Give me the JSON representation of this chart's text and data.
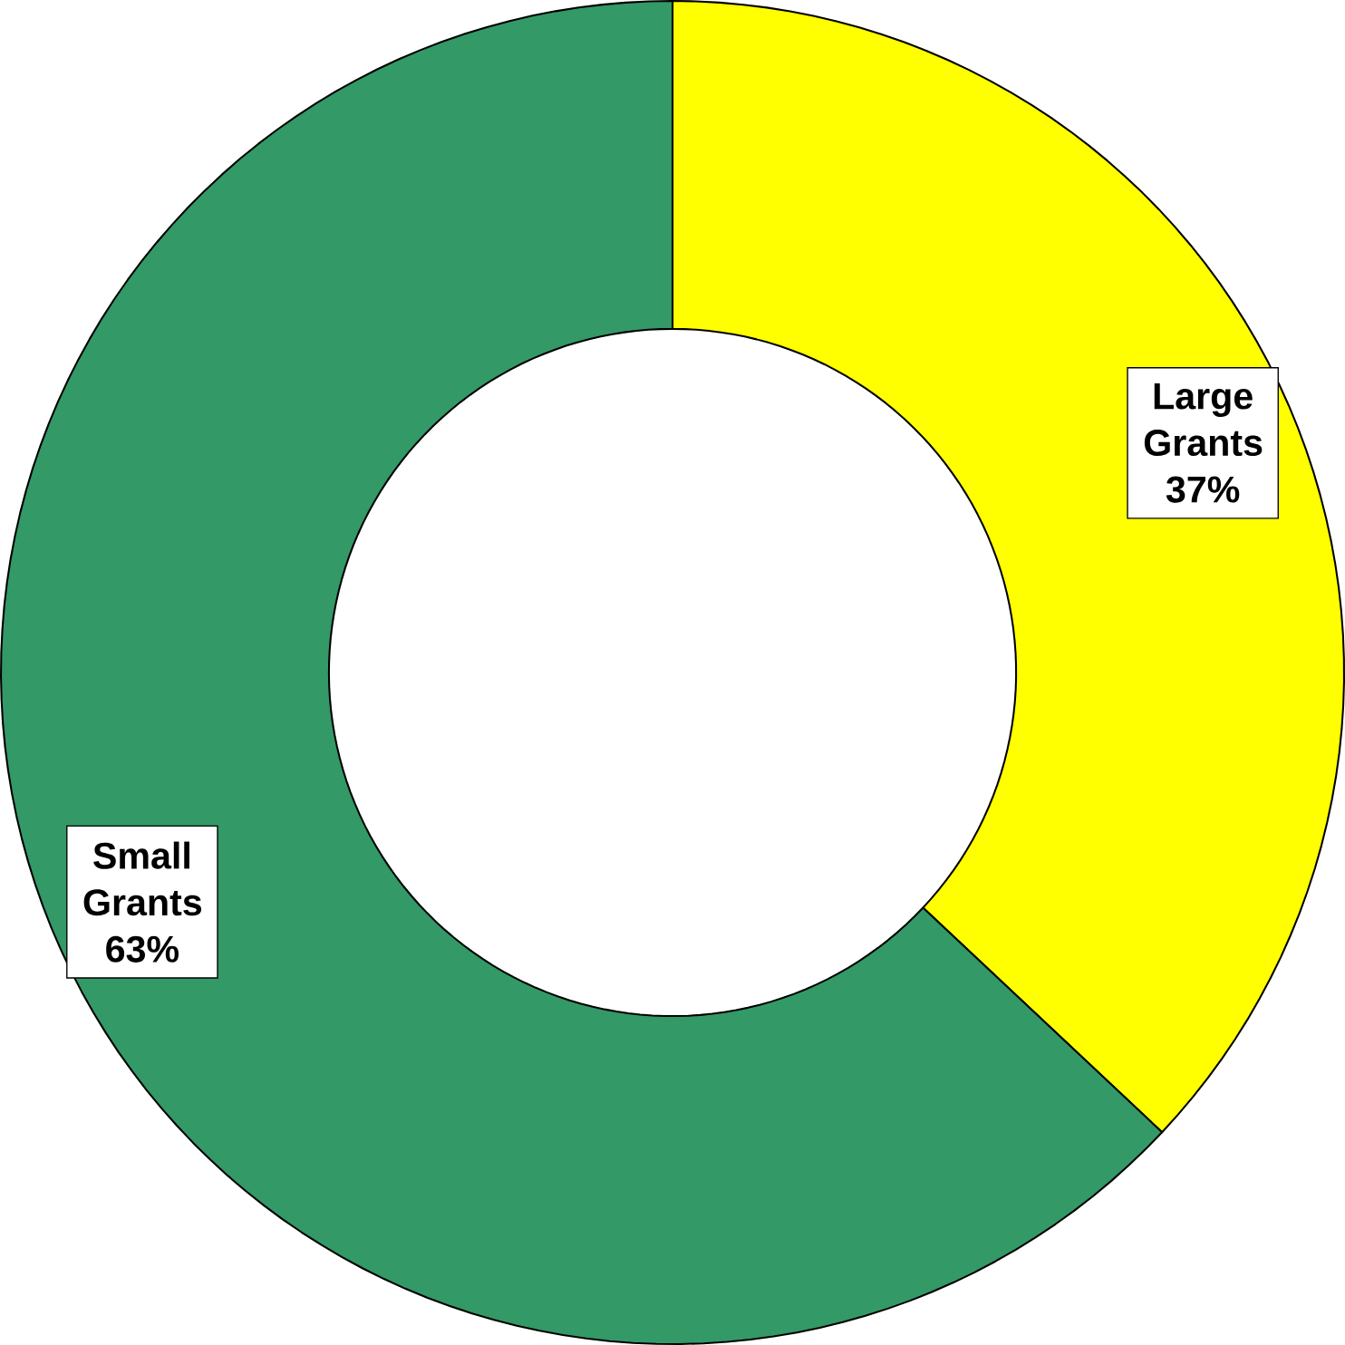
{
  "chart_data": {
    "type": "donut",
    "categories": [
      "Large Grants",
      "Small Grants"
    ],
    "values": [
      37,
      63
    ],
    "value_labels": [
      "37%",
      "63%"
    ],
    "colors": [
      "#ffff00",
      "#339966"
    ]
  }
}
